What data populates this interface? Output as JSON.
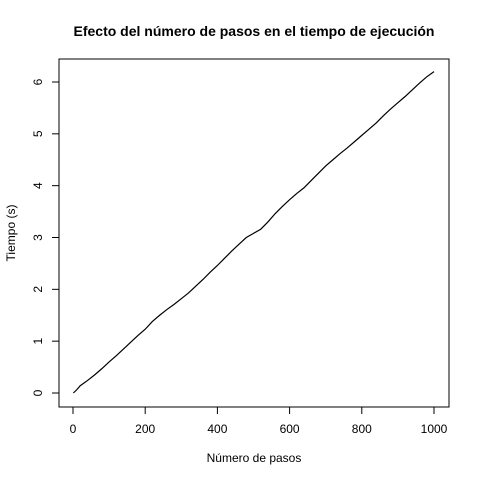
{
  "chart_data": {
    "type": "line",
    "title": "Efecto del número de pasos en el tiempo de ejecución",
    "xlabel": "Número de pasos",
    "ylabel": "Tiempo (s)",
    "xlim": [
      0,
      1000
    ],
    "ylim": [
      0,
      6.2
    ],
    "x_ticks": [
      0,
      200,
      400,
      600,
      800,
      1000
    ],
    "y_ticks": [
      0,
      1,
      2,
      3,
      4,
      5,
      6
    ],
    "grid": false,
    "series": [
      {
        "color": "#000000",
        "x": [
          1,
          10,
          20,
          40,
          60,
          80,
          100,
          120,
          140,
          160,
          180,
          200,
          220,
          240,
          260,
          280,
          300,
          320,
          340,
          360,
          380,
          400,
          420,
          440,
          460,
          480,
          500,
          520,
          540,
          560,
          580,
          600,
          620,
          640,
          660,
          680,
          700,
          720,
          740,
          760,
          780,
          800,
          820,
          840,
          860,
          880,
          900,
          920,
          940,
          960,
          980,
          1000
        ],
        "y": [
          0.0,
          0.06,
          0.14,
          0.24,
          0.35,
          0.47,
          0.6,
          0.72,
          0.85,
          0.98,
          1.11,
          1.23,
          1.38,
          1.5,
          1.61,
          1.71,
          1.82,
          1.93,
          2.06,
          2.19,
          2.33,
          2.46,
          2.6,
          2.74,
          2.87,
          3.0,
          3.08,
          3.16,
          3.3,
          3.46,
          3.6,
          3.73,
          3.85,
          3.96,
          4.1,
          4.24,
          4.38,
          4.5,
          4.62,
          4.73,
          4.85,
          4.97,
          5.09,
          5.21,
          5.35,
          5.48,
          5.6,
          5.72,
          5.85,
          5.98,
          6.1,
          6.2
        ]
      }
    ]
  }
}
